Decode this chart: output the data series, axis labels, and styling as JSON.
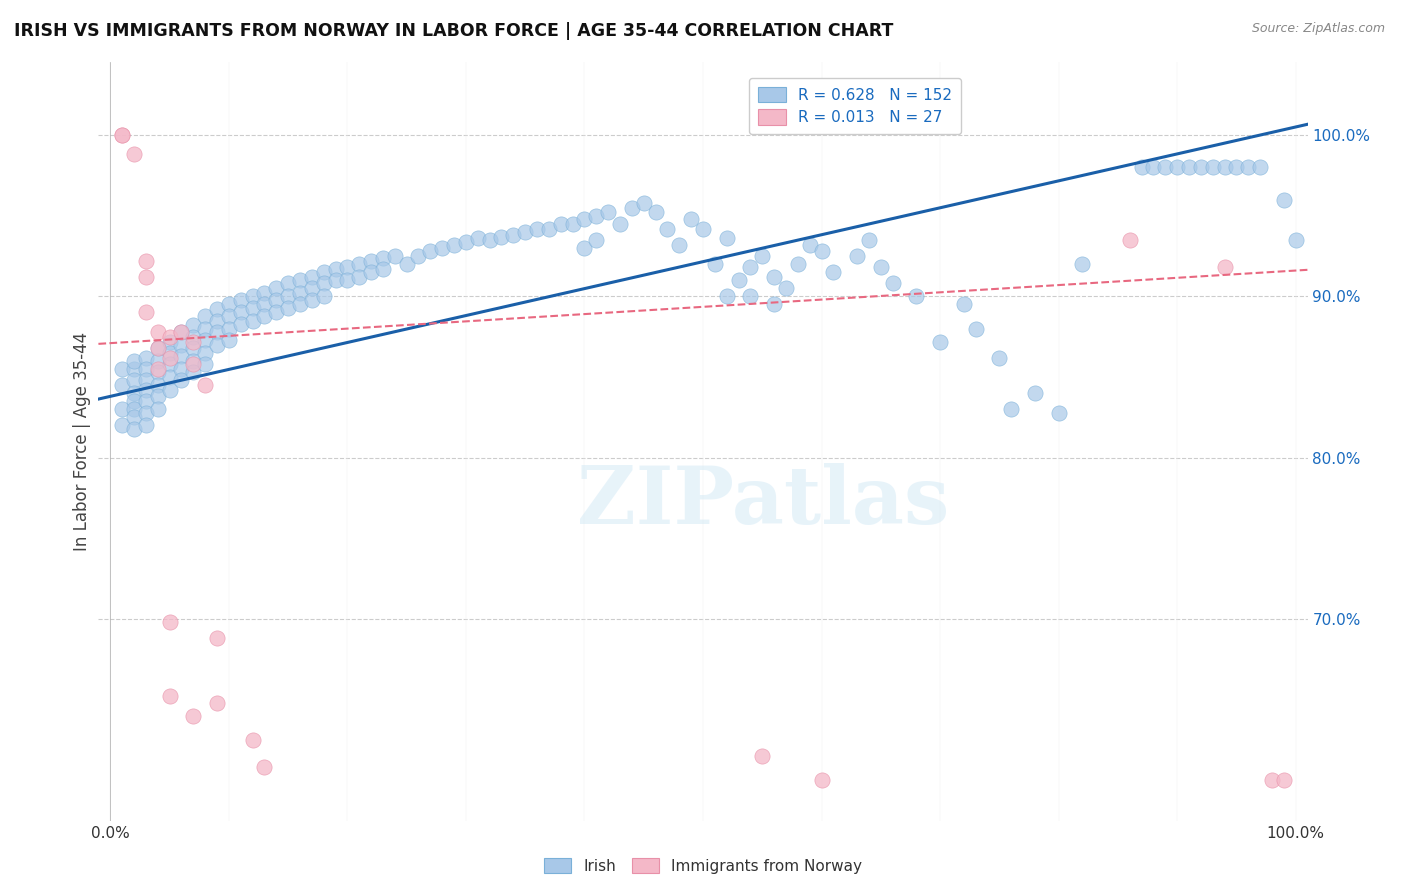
{
  "title": "IRISH VS IMMIGRANTS FROM NORWAY IN LABOR FORCE | AGE 35-44 CORRELATION CHART",
  "source": "Source: ZipAtlas.com",
  "ylabel": "In Labor Force | Age 35-44",
  "xlim": [
    -0.01,
    1.01
  ],
  "ylim": [
    0.575,
    1.045
  ],
  "x_tick_vals": [
    0.0,
    0.1,
    0.2,
    0.3,
    0.4,
    0.5,
    0.6,
    0.7,
    0.8,
    0.9,
    1.0
  ],
  "x_tick_labels": [
    "0.0%",
    "",
    "",
    "",
    "",
    "",
    "",
    "",
    "",
    "",
    "100.0%"
  ],
  "y_tick_vals": [
    0.6,
    0.65,
    0.7,
    0.75,
    0.8,
    0.85,
    0.9,
    0.95,
    1.0
  ],
  "y_tick_labels_right": [
    "",
    "",
    "70.0%",
    "",
    "80.0%",
    "",
    "90.0%",
    "",
    "100.0%"
  ],
  "blue_color": "#a8c8e8",
  "blue_edge_color": "#7ab0d8",
  "pink_color": "#f4b8c8",
  "pink_edge_color": "#e890a8",
  "blue_line_color": "#1a5fa8",
  "pink_line_color": "#e86880",
  "r_blue": 0.628,
  "n_blue": 152,
  "r_pink": 0.013,
  "n_pink": 27,
  "watermark": "ZIPatlas",
  "blue_line_x0": 0.0,
  "blue_line_y0": 0.838,
  "blue_line_x1": 1.0,
  "blue_line_y1": 1.005,
  "pink_line_x0": 0.0,
  "pink_line_y0": 0.871,
  "pink_line_x1": 1.0,
  "pink_line_y1": 0.916,
  "blue_scatter": [
    [
      0.01,
      0.845
    ],
    [
      0.01,
      0.855
    ],
    [
      0.01,
      0.83
    ],
    [
      0.01,
      0.82
    ],
    [
      0.02,
      0.855
    ],
    [
      0.02,
      0.86
    ],
    [
      0.02,
      0.848
    ],
    [
      0.02,
      0.84
    ],
    [
      0.02,
      0.835
    ],
    [
      0.02,
      0.83
    ],
    [
      0.02,
      0.825
    ],
    [
      0.02,
      0.818
    ],
    [
      0.03,
      0.862
    ],
    [
      0.03,
      0.855
    ],
    [
      0.03,
      0.848
    ],
    [
      0.03,
      0.842
    ],
    [
      0.03,
      0.835
    ],
    [
      0.03,
      0.828
    ],
    [
      0.03,
      0.82
    ],
    [
      0.04,
      0.868
    ],
    [
      0.04,
      0.86
    ],
    [
      0.04,
      0.853
    ],
    [
      0.04,
      0.845
    ],
    [
      0.04,
      0.838
    ],
    [
      0.04,
      0.83
    ],
    [
      0.05,
      0.872
    ],
    [
      0.05,
      0.865
    ],
    [
      0.05,
      0.858
    ],
    [
      0.05,
      0.85
    ],
    [
      0.05,
      0.842
    ],
    [
      0.06,
      0.878
    ],
    [
      0.06,
      0.87
    ],
    [
      0.06,
      0.863
    ],
    [
      0.06,
      0.855
    ],
    [
      0.06,
      0.848
    ],
    [
      0.07,
      0.882
    ],
    [
      0.07,
      0.875
    ],
    [
      0.07,
      0.868
    ],
    [
      0.07,
      0.86
    ],
    [
      0.07,
      0.853
    ],
    [
      0.08,
      0.888
    ],
    [
      0.08,
      0.88
    ],
    [
      0.08,
      0.873
    ],
    [
      0.08,
      0.865
    ],
    [
      0.08,
      0.858
    ],
    [
      0.09,
      0.892
    ],
    [
      0.09,
      0.885
    ],
    [
      0.09,
      0.878
    ],
    [
      0.09,
      0.87
    ],
    [
      0.1,
      0.895
    ],
    [
      0.1,
      0.888
    ],
    [
      0.1,
      0.88
    ],
    [
      0.1,
      0.873
    ],
    [
      0.11,
      0.898
    ],
    [
      0.11,
      0.89
    ],
    [
      0.11,
      0.883
    ],
    [
      0.12,
      0.9
    ],
    [
      0.12,
      0.893
    ],
    [
      0.12,
      0.885
    ],
    [
      0.13,
      0.902
    ],
    [
      0.13,
      0.895
    ],
    [
      0.13,
      0.888
    ],
    [
      0.14,
      0.905
    ],
    [
      0.14,
      0.898
    ],
    [
      0.14,
      0.89
    ],
    [
      0.15,
      0.908
    ],
    [
      0.15,
      0.9
    ],
    [
      0.15,
      0.893
    ],
    [
      0.16,
      0.91
    ],
    [
      0.16,
      0.902
    ],
    [
      0.16,
      0.895
    ],
    [
      0.17,
      0.912
    ],
    [
      0.17,
      0.905
    ],
    [
      0.17,
      0.898
    ],
    [
      0.18,
      0.915
    ],
    [
      0.18,
      0.908
    ],
    [
      0.18,
      0.9
    ],
    [
      0.19,
      0.917
    ],
    [
      0.19,
      0.91
    ],
    [
      0.2,
      0.918
    ],
    [
      0.2,
      0.91
    ],
    [
      0.21,
      0.92
    ],
    [
      0.21,
      0.912
    ],
    [
      0.22,
      0.922
    ],
    [
      0.22,
      0.915
    ],
    [
      0.23,
      0.924
    ],
    [
      0.23,
      0.917
    ],
    [
      0.24,
      0.925
    ],
    [
      0.25,
      0.92
    ],
    [
      0.26,
      0.925
    ],
    [
      0.27,
      0.928
    ],
    [
      0.28,
      0.93
    ],
    [
      0.29,
      0.932
    ],
    [
      0.3,
      0.934
    ],
    [
      0.31,
      0.936
    ],
    [
      0.32,
      0.935
    ],
    [
      0.33,
      0.937
    ],
    [
      0.34,
      0.938
    ],
    [
      0.35,
      0.94
    ],
    [
      0.36,
      0.942
    ],
    [
      0.37,
      0.942
    ],
    [
      0.38,
      0.945
    ],
    [
      0.39,
      0.945
    ],
    [
      0.4,
      0.948
    ],
    [
      0.4,
      0.93
    ],
    [
      0.41,
      0.935
    ],
    [
      0.41,
      0.95
    ],
    [
      0.42,
      0.952
    ],
    [
      0.43,
      0.945
    ],
    [
      0.44,
      0.955
    ],
    [
      0.45,
      0.958
    ],
    [
      0.46,
      0.952
    ],
    [
      0.47,
      0.942
    ],
    [
      0.48,
      0.932
    ],
    [
      0.49,
      0.948
    ],
    [
      0.5,
      0.942
    ],
    [
      0.51,
      0.92
    ],
    [
      0.52,
      0.936
    ],
    [
      0.52,
      0.9
    ],
    [
      0.53,
      0.91
    ],
    [
      0.54,
      0.918
    ],
    [
      0.54,
      0.9
    ],
    [
      0.55,
      0.925
    ],
    [
      0.56,
      0.912
    ],
    [
      0.56,
      0.895
    ],
    [
      0.57,
      0.905
    ],
    [
      0.58,
      0.92
    ],
    [
      0.59,
      0.932
    ],
    [
      0.6,
      0.928
    ],
    [
      0.61,
      0.915
    ],
    [
      0.63,
      0.925
    ],
    [
      0.64,
      0.935
    ],
    [
      0.65,
      0.918
    ],
    [
      0.66,
      0.908
    ],
    [
      0.68,
      0.9
    ],
    [
      0.7,
      0.872
    ],
    [
      0.72,
      0.895
    ],
    [
      0.73,
      0.88
    ],
    [
      0.75,
      0.862
    ],
    [
      0.76,
      0.83
    ],
    [
      0.78,
      0.84
    ],
    [
      0.8,
      0.828
    ],
    [
      0.82,
      0.92
    ],
    [
      0.87,
      0.98
    ],
    [
      0.88,
      0.98
    ],
    [
      0.89,
      0.98
    ],
    [
      0.9,
      0.98
    ],
    [
      0.91,
      0.98
    ],
    [
      0.92,
      0.98
    ],
    [
      0.93,
      0.98
    ],
    [
      0.94,
      0.98
    ],
    [
      0.95,
      0.98
    ],
    [
      0.96,
      0.98
    ],
    [
      0.97,
      0.98
    ],
    [
      0.99,
      0.96
    ],
    [
      1.0,
      0.935
    ]
  ],
  "pink_scatter": [
    [
      0.01,
      1.0
    ],
    [
      0.01,
      1.0
    ],
    [
      0.02,
      0.988
    ],
    [
      0.03,
      0.922
    ],
    [
      0.03,
      0.912
    ],
    [
      0.03,
      0.89
    ],
    [
      0.04,
      0.878
    ],
    [
      0.04,
      0.868
    ],
    [
      0.04,
      0.855
    ],
    [
      0.05,
      0.875
    ],
    [
      0.05,
      0.862
    ],
    [
      0.05,
      0.698
    ],
    [
      0.05,
      0.652
    ],
    [
      0.06,
      0.878
    ],
    [
      0.07,
      0.872
    ],
    [
      0.07,
      0.858
    ],
    [
      0.07,
      0.64
    ],
    [
      0.08,
      0.845
    ],
    [
      0.09,
      0.688
    ],
    [
      0.09,
      0.648
    ],
    [
      0.12,
      0.625
    ],
    [
      0.13,
      0.608
    ],
    [
      0.55,
      0.615
    ],
    [
      0.6,
      0.6
    ],
    [
      0.86,
      0.935
    ],
    [
      0.94,
      0.918
    ],
    [
      0.98,
      0.6
    ],
    [
      0.99,
      0.6
    ]
  ]
}
